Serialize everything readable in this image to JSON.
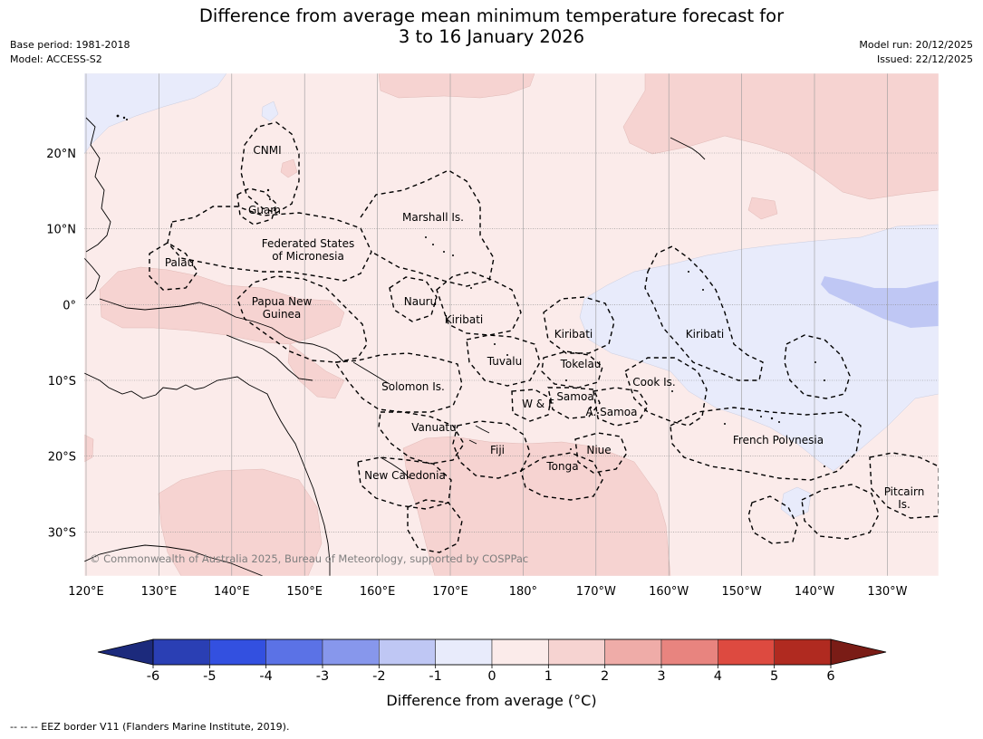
{
  "header": {
    "title_line1": "Difference from average mean minimum temperature forecast for",
    "title_line2": "3 to 16 January 2026",
    "base_period": "Base period: 1981-2018",
    "model": "Model: ACCESS-S2",
    "model_run": "Model run: 20/12/2025",
    "issued": "Issued: 22/12/2025"
  },
  "map": {
    "extent_lon": [
      120,
      235
    ],
    "extent_lat": [
      -36,
      30
    ],
    "lon_ticks": [
      {
        "lon": 120,
        "label": "120°E"
      },
      {
        "lon": 130,
        "label": "130°E"
      },
      {
        "lon": 140,
        "label": "140°E"
      },
      {
        "lon": 150,
        "label": "150°E"
      },
      {
        "lon": 160,
        "label": "160°E"
      },
      {
        "lon": 170,
        "label": "170°E"
      },
      {
        "lon": 180,
        "label": "180°"
      },
      {
        "lon": 190,
        "label": "170°W"
      },
      {
        "lon": 200,
        "label": "160°W"
      },
      {
        "lon": 210,
        "label": "150°W"
      },
      {
        "lon": 220,
        "label": "140°W"
      },
      {
        "lon": 230,
        "label": "130°W"
      }
    ],
    "lat_ticks": [
      {
        "lat": 20,
        "label": "20°N"
      },
      {
        "lat": 10,
        "label": "10°N"
      },
      {
        "lat": 0,
        "label": "0°"
      },
      {
        "lat": -10,
        "label": "10°S"
      },
      {
        "lat": -20,
        "label": "20°S"
      },
      {
        "lat": -30,
        "label": "30°S"
      }
    ],
    "regions": [
      {
        "name": "CNMI",
        "lines": [
          "CNMI"
        ]
      },
      {
        "name": "Guam",
        "lines": [
          "Guam"
        ]
      },
      {
        "name": "Marshall Is.",
        "lines": [
          "Marshall Is."
        ]
      },
      {
        "name": "Federated States of Micronesia",
        "lines": [
          "Federated States",
          "of Micronesia"
        ]
      },
      {
        "name": "Palau",
        "lines": [
          "Palau"
        ]
      },
      {
        "name": "Papua New Guinea",
        "lines": [
          "Papua New",
          "Guinea"
        ]
      },
      {
        "name": "Nauru",
        "lines": [
          "Nauru"
        ]
      },
      {
        "name": "Kiribati west",
        "lines": [
          "Kiribati"
        ]
      },
      {
        "name": "Kiribati central",
        "lines": [
          "Kiribati"
        ]
      },
      {
        "name": "Kiribati east",
        "lines": [
          "Kiribati"
        ]
      },
      {
        "name": "Tuvalu",
        "lines": [
          "Tuvalu"
        ]
      },
      {
        "name": "Tokelau",
        "lines": [
          "Tokelau"
        ]
      },
      {
        "name": "Cook Is.",
        "lines": [
          "Cook Is."
        ]
      },
      {
        "name": "Solomon Is.",
        "lines": [
          "Solomon Is."
        ]
      },
      {
        "name": "Samoa",
        "lines": [
          "Samoa"
        ]
      },
      {
        "name": "W & F",
        "lines": [
          "W & F"
        ]
      },
      {
        "name": "A. Samoa",
        "lines": [
          "A. Samoa"
        ]
      },
      {
        "name": "Vanuatu",
        "lines": [
          "Vanuatu"
        ]
      },
      {
        "name": "Fiji",
        "lines": [
          "Fiji"
        ]
      },
      {
        "name": "Niue",
        "lines": [
          "Niue"
        ]
      },
      {
        "name": "French Polynesia",
        "lines": [
          "French Polynesia"
        ]
      },
      {
        "name": "Tonga",
        "lines": [
          "Tonga"
        ]
      },
      {
        "name": "New Caledonia",
        "lines": [
          "New Caledonia"
        ]
      },
      {
        "name": "Pitcairn Is.",
        "lines": [
          "Pitcairn",
          "Is."
        ]
      }
    ],
    "copyright": "© Commonwealth of Australia 2025, Bureau of Meteorology, supported by COSPPac"
  },
  "colorbar": {
    "boundaries": [
      -6,
      -5,
      -4,
      -3,
      -2,
      -1,
      0,
      1,
      2,
      3,
      4,
      5,
      6
    ],
    "labels": [
      "-6",
      "-5",
      "-4",
      "-3",
      "-2",
      "-1",
      "0",
      "1",
      "2",
      "3",
      "4",
      "5",
      "6"
    ],
    "under_color": "#1c2a7c",
    "over_color": "#7a1c16",
    "colors": [
      "#2a3fb4",
      "#3350e0",
      "#5b72e6",
      "#8797ec",
      "#bfc7f4",
      "#e8ebfb",
      "#fbebea",
      "#f6d3d1",
      "#efaca8",
      "#e8847f",
      "#dd4a40",
      "#b02a20"
    ],
    "title": "Difference from average (°C)"
  },
  "map_colors": {
    "base": "#fbebea",
    "warm": "#f6d3d1",
    "cool": "#e8ebfb",
    "cooler": "#bfc7f4"
  },
  "footnote": "--  --  -- EEZ border V11 (Flanders Marine Institute, 2019)."
}
